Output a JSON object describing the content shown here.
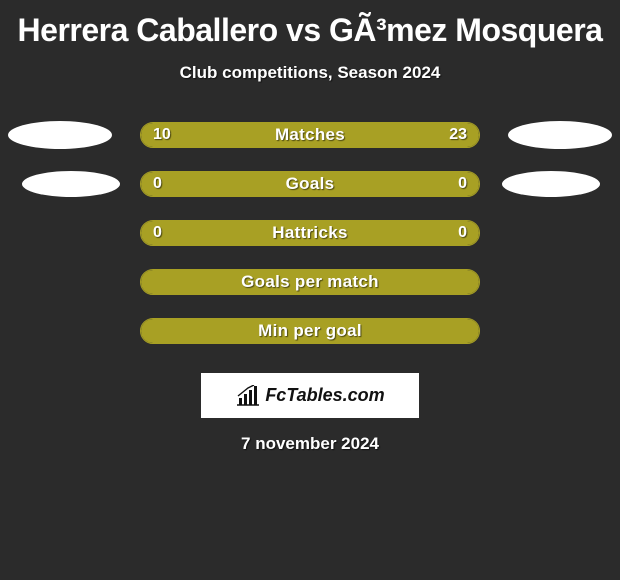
{
  "title": "Herrera Caballero vs GÃ³mez Mosquera",
  "subtitle": "Club competitions, Season 2024",
  "date": "7 november 2024",
  "brand": "FcTables.com",
  "colors": {
    "background": "#2b2b2b",
    "bar_color": "#a8a024",
    "ellipse_color": "#ffffff",
    "text_color": "#ffffff",
    "logo_bg": "#ffffff",
    "logo_text": "#111111"
  },
  "stats": [
    {
      "label": "Matches",
      "left_value": "10",
      "right_value": "23",
      "left_pct": 30,
      "right_pct": 70,
      "show_ellipses": true,
      "ellipse_size": "large"
    },
    {
      "label": "Goals",
      "left_value": "0",
      "right_value": "0",
      "left_pct": 0,
      "right_pct": 0,
      "full": true,
      "show_ellipses": true,
      "ellipse_size": "small"
    },
    {
      "label": "Hattricks",
      "left_value": "0",
      "right_value": "0",
      "left_pct": 0,
      "right_pct": 0,
      "full": true,
      "show_ellipses": false
    },
    {
      "label": "Goals per match",
      "left_value": "",
      "right_value": "",
      "full": true,
      "show_ellipses": false
    },
    {
      "label": "Min per goal",
      "left_value": "",
      "right_value": "",
      "full": true,
      "show_ellipses": false
    }
  ],
  "typography": {
    "title_fontsize": 32,
    "subtitle_fontsize": 17,
    "bar_label_fontsize": 17,
    "bar_value_fontsize": 16,
    "date_fontsize": 17
  }
}
